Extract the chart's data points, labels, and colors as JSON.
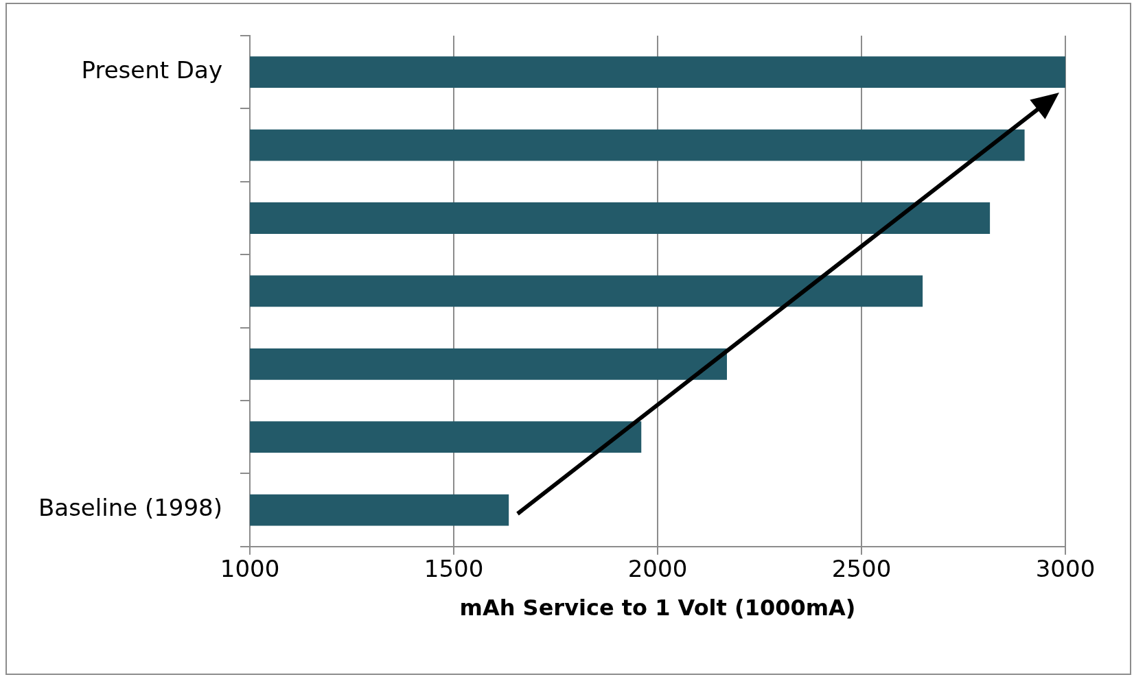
{
  "chart_data": {
    "type": "bar",
    "orientation": "horizontal",
    "xlabel": "mAh Service to 1 Volt (1000mA)",
    "categories": [
      "Present Day",
      null,
      null,
      null,
      null,
      null,
      "Baseline (1998)"
    ],
    "values": [
      3000,
      2900,
      2815,
      2650,
      2170,
      1960,
      1635
    ],
    "color": "#235a69",
    "xlim": [
      1000,
      3000
    ],
    "xticks": [
      1000,
      1500,
      2000,
      2500,
      3000
    ],
    "grid": "x",
    "legend": false
  }
}
